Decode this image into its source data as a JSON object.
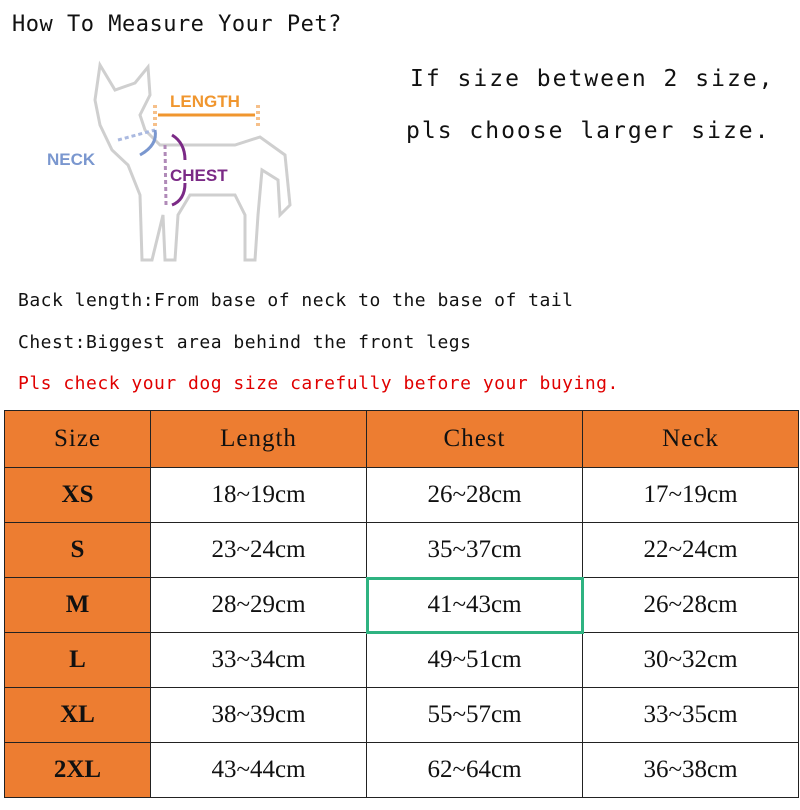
{
  "title": "How To Measure Your Pet?",
  "note": [
    "If size between 2 size,",
    "pls choose larger size."
  ],
  "diagram": {
    "labels": {
      "length": "LENGTH",
      "neck": "NECK",
      "chest": "CHEST"
    },
    "colors": {
      "length": "#f0962e",
      "neck": "#7a97cf",
      "chest": "#7b2a86"
    }
  },
  "instructions": [
    "Back length:From base of neck to the base of tail",
    "Chest:Biggest area behind the front legs"
  ],
  "warning": "Pls check your dog size carefully before your buying.",
  "colors": {
    "header": "#ED7D31",
    "warning": "#e00000",
    "selection": "#2fb381"
  },
  "table": {
    "headers": [
      "Size",
      "Length",
      "Chest",
      "Neck"
    ],
    "rows": [
      [
        "XS",
        "18~19cm",
        "26~28cm",
        "17~19cm"
      ],
      [
        "S",
        "23~24cm",
        "35~37cm",
        "22~24cm"
      ],
      [
        "M",
        "28~29cm",
        "41~43cm",
        "26~28cm"
      ],
      [
        "L",
        "33~34cm",
        "49~51cm",
        "30~32cm"
      ],
      [
        "XL",
        "38~39cm",
        "55~57cm",
        "33~35cm"
      ],
      [
        "2XL",
        "43~44cm",
        "62~64cm",
        "36~38cm"
      ]
    ]
  }
}
